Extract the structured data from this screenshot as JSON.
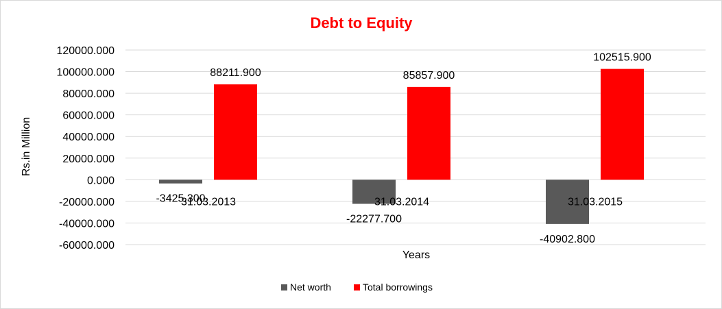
{
  "chart_data": {
    "type": "bar",
    "title": "Debt to Equity",
    "title_color": "#ff0000",
    "xlabel": "Years",
    "ylabel": "Rs.in Million",
    "categories": [
      "31.03.2013",
      "31.03.2014",
      "31.03.2015"
    ],
    "series": [
      {
        "name": "Net worth",
        "color": "#595959",
        "values": [
          -3425.3,
          -22277.7,
          -40902.8
        ],
        "labels": [
          "-3425.300",
          "-22277.700",
          "-40902.800"
        ]
      },
      {
        "name": "Total borrowings",
        "color": "#ff0000",
        "values": [
          88211.9,
          85857.9,
          102515.9
        ],
        "labels": [
          "88211.900",
          "85857.900",
          "102515.900"
        ]
      }
    ],
    "ylim": [
      -60000,
      120000
    ],
    "yticks": [
      "120000.000",
      "100000.000",
      "80000.000",
      "60000.000",
      "40000.000",
      "20000.000",
      "0.000",
      "-20000.000",
      "-40000.000",
      "-60000.000"
    ],
    "ytick_values": [
      120000,
      100000,
      80000,
      60000,
      40000,
      20000,
      0,
      -20000,
      -40000,
      -60000
    ],
    "grid": true,
    "legend_position": "bottom"
  }
}
